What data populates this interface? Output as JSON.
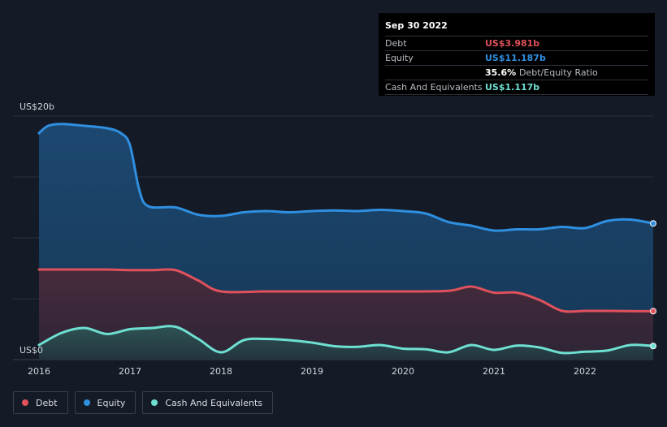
{
  "tooltip": {
    "date": "Sep 30 2022",
    "debt_label": "Debt",
    "debt_value": "US$3.981b",
    "equity_label": "Equity",
    "equity_value": "US$11.187b",
    "ratio_value": "35.6%",
    "ratio_label": "Debt/Equity Ratio",
    "cash_label": "Cash And Equivalents",
    "cash_value": "US$1.117b"
  },
  "legend": [
    {
      "label": "Debt",
      "color": "#e0515c"
    },
    {
      "label": "Equity",
      "color": "#2f8fe0"
    },
    {
      "label": "Cash And Equivalents",
      "color": "#6ee0d2"
    }
  ],
  "chart_data": {
    "type": "area",
    "y_unit_labels": {
      "top": "US$20b",
      "bottom": "US$0"
    },
    "ylim": [
      0,
      20
    ],
    "xlim": [
      2016.0,
      2022.75
    ],
    "x_ticks": [
      "2016",
      "2017",
      "2018",
      "2019",
      "2020",
      "2021",
      "2022"
    ],
    "grid": true,
    "series": [
      {
        "name": "Equity",
        "color": "#2f8fe0",
        "points": [
          [
            2016.0,
            18.6
          ],
          [
            2016.1,
            19.2
          ],
          [
            2016.25,
            19.35
          ],
          [
            2016.5,
            19.2
          ],
          [
            2016.75,
            19.0
          ],
          [
            2016.9,
            18.6
          ],
          [
            2017.0,
            17.6
          ],
          [
            2017.1,
            14.0
          ],
          [
            2017.2,
            12.6
          ],
          [
            2017.5,
            12.5
          ],
          [
            2017.75,
            11.9
          ],
          [
            2018.0,
            11.8
          ],
          [
            2018.25,
            12.1
          ],
          [
            2018.5,
            12.2
          ],
          [
            2018.75,
            12.1
          ],
          [
            2019.0,
            12.2
          ],
          [
            2019.25,
            12.25
          ],
          [
            2019.5,
            12.2
          ],
          [
            2019.75,
            12.3
          ],
          [
            2020.0,
            12.2
          ],
          [
            2020.25,
            12.0
          ],
          [
            2020.5,
            11.3
          ],
          [
            2020.75,
            11.0
          ],
          [
            2021.0,
            10.6
          ],
          [
            2021.25,
            10.7
          ],
          [
            2021.5,
            10.7
          ],
          [
            2021.75,
            10.9
          ],
          [
            2022.0,
            10.8
          ],
          [
            2022.25,
            11.4
          ],
          [
            2022.5,
            11.5
          ],
          [
            2022.75,
            11.187
          ]
        ]
      },
      {
        "name": "Debt",
        "color": "#e0515c",
        "points": [
          [
            2016.0,
            7.4
          ],
          [
            2016.5,
            7.4
          ],
          [
            2016.75,
            7.4
          ],
          [
            2017.0,
            7.35
          ],
          [
            2017.25,
            7.35
          ],
          [
            2017.5,
            7.35
          ],
          [
            2017.75,
            6.5
          ],
          [
            2018.0,
            5.6
          ],
          [
            2018.5,
            5.6
          ],
          [
            2019.0,
            5.6
          ],
          [
            2019.5,
            5.6
          ],
          [
            2020.0,
            5.6
          ],
          [
            2020.5,
            5.65
          ],
          [
            2020.75,
            6.0
          ],
          [
            2021.0,
            5.5
          ],
          [
            2021.25,
            5.5
          ],
          [
            2021.5,
            4.9
          ],
          [
            2021.75,
            4.0
          ],
          [
            2022.0,
            4.0
          ],
          [
            2022.25,
            4.0
          ],
          [
            2022.5,
            3.98
          ],
          [
            2022.75,
            3.981
          ]
        ]
      },
      {
        "name": "Cash And Equivalents",
        "color": "#6ee0d2",
        "points": [
          [
            2016.0,
            1.2
          ],
          [
            2016.25,
            2.2
          ],
          [
            2016.5,
            2.6
          ],
          [
            2016.75,
            2.1
          ],
          [
            2017.0,
            2.5
          ],
          [
            2017.25,
            2.6
          ],
          [
            2017.5,
            2.7
          ],
          [
            2017.75,
            1.7
          ],
          [
            2018.0,
            0.6
          ],
          [
            2018.25,
            1.6
          ],
          [
            2018.5,
            1.7
          ],
          [
            2018.75,
            1.6
          ],
          [
            2019.0,
            1.4
          ],
          [
            2019.25,
            1.1
          ],
          [
            2019.5,
            1.05
          ],
          [
            2019.75,
            1.2
          ],
          [
            2020.0,
            0.9
          ],
          [
            2020.25,
            0.85
          ],
          [
            2020.5,
            0.6
          ],
          [
            2020.75,
            1.2
          ],
          [
            2021.0,
            0.8
          ],
          [
            2021.25,
            1.15
          ],
          [
            2021.5,
            1.0
          ],
          [
            2021.75,
            0.55
          ],
          [
            2022.0,
            0.65
          ],
          [
            2022.25,
            0.75
          ],
          [
            2022.5,
            1.2
          ],
          [
            2022.75,
            1.117
          ]
        ]
      }
    ]
  }
}
